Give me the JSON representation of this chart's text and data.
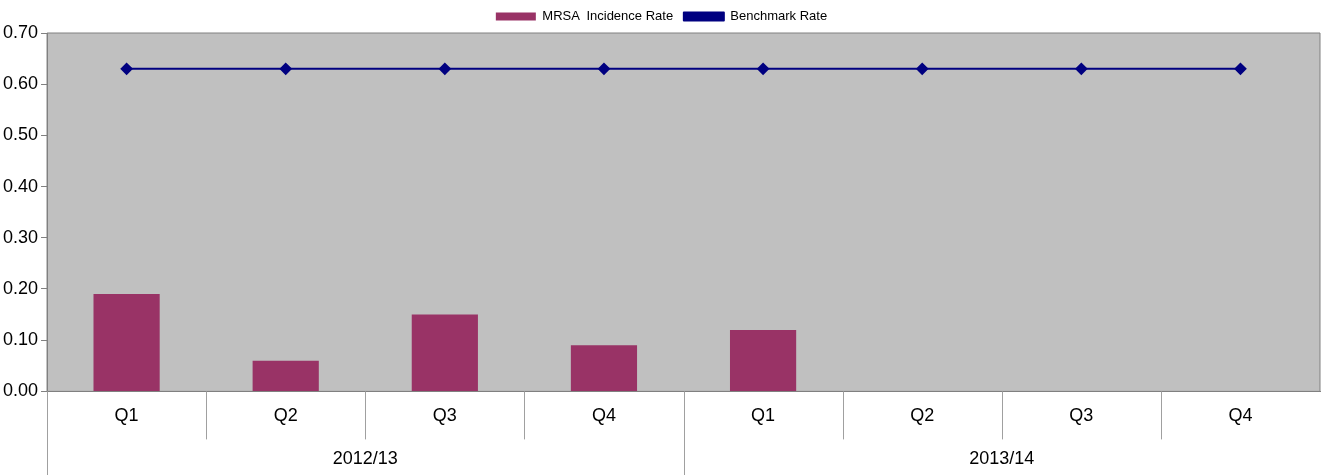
{
  "chart_data": {
    "type": "bar",
    "categories": [
      "Q1",
      "Q2",
      "Q3",
      "Q4",
      "Q1",
      "Q2",
      "Q3",
      "Q4"
    ],
    "series": [
      {
        "name": "MRSA  Incidence Rate",
        "color": "#993366",
        "values": [
          0.19,
          0.06,
          0.15,
          0.09,
          0.12,
          null,
          null,
          null
        ]
      },
      {
        "name": "Benchmark Rate",
        "type": "line",
        "color": "#000080",
        "marker": "diamond",
        "values": [
          0.63,
          0.63,
          0.63,
          0.63,
          0.63,
          0.63,
          0.63,
          0.63
        ]
      }
    ],
    "ylim": [
      0,
      0.7
    ],
    "yticks": [
      {
        "value": 0,
        "label": "0.00"
      },
      {
        "value": 0.1,
        "label": "0.10"
      },
      {
        "value": 0.2,
        "label": "0.20"
      },
      {
        "value": 0.3,
        "label": "0.30"
      },
      {
        "value": 0.4,
        "label": "0.40"
      },
      {
        "value": 0.5,
        "label": "0.50"
      },
      {
        "value": 0.6,
        "label": "0.60"
      },
      {
        "value": 0.7,
        "label": "0.70"
      }
    ],
    "annotations": [
      "2012/13",
      "2013/14"
    ],
    "grid": false,
    "legend": "top"
  }
}
